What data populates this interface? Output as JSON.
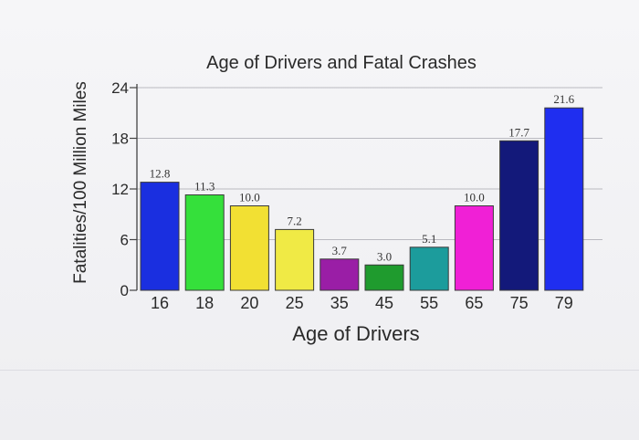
{
  "chart_data": {
    "type": "bar",
    "title": "Age of Drivers and Fatal Crashes",
    "xlabel": "Age of Drivers",
    "ylabel": "Fatalities/100 Million Miles",
    "categories": [
      "16",
      "18",
      "20",
      "25",
      "35",
      "45",
      "55",
      "65",
      "75",
      "79"
    ],
    "values": [
      12.8,
      11.3,
      10.0,
      7.2,
      3.7,
      3.0,
      5.1,
      10.0,
      17.7,
      21.6
    ],
    "value_labels": [
      "12.8",
      "11.3",
      "10.0",
      "7.2",
      "3.7",
      "3.0",
      "5.1",
      "10.0",
      "17.7",
      "21.6"
    ],
    "colors": [
      "#1a2fe0",
      "#35e03b",
      "#f2e033",
      "#f0ea45",
      "#9a1ea6",
      "#1f9b2e",
      "#1c9c9c",
      "#f020d6",
      "#13197a",
      "#1f2ef0"
    ],
    "yticks": [
      "0",
      "6",
      "12",
      "18",
      "24"
    ],
    "ylim": [
      0,
      24
    ],
    "grid": true,
    "legend": "none"
  }
}
